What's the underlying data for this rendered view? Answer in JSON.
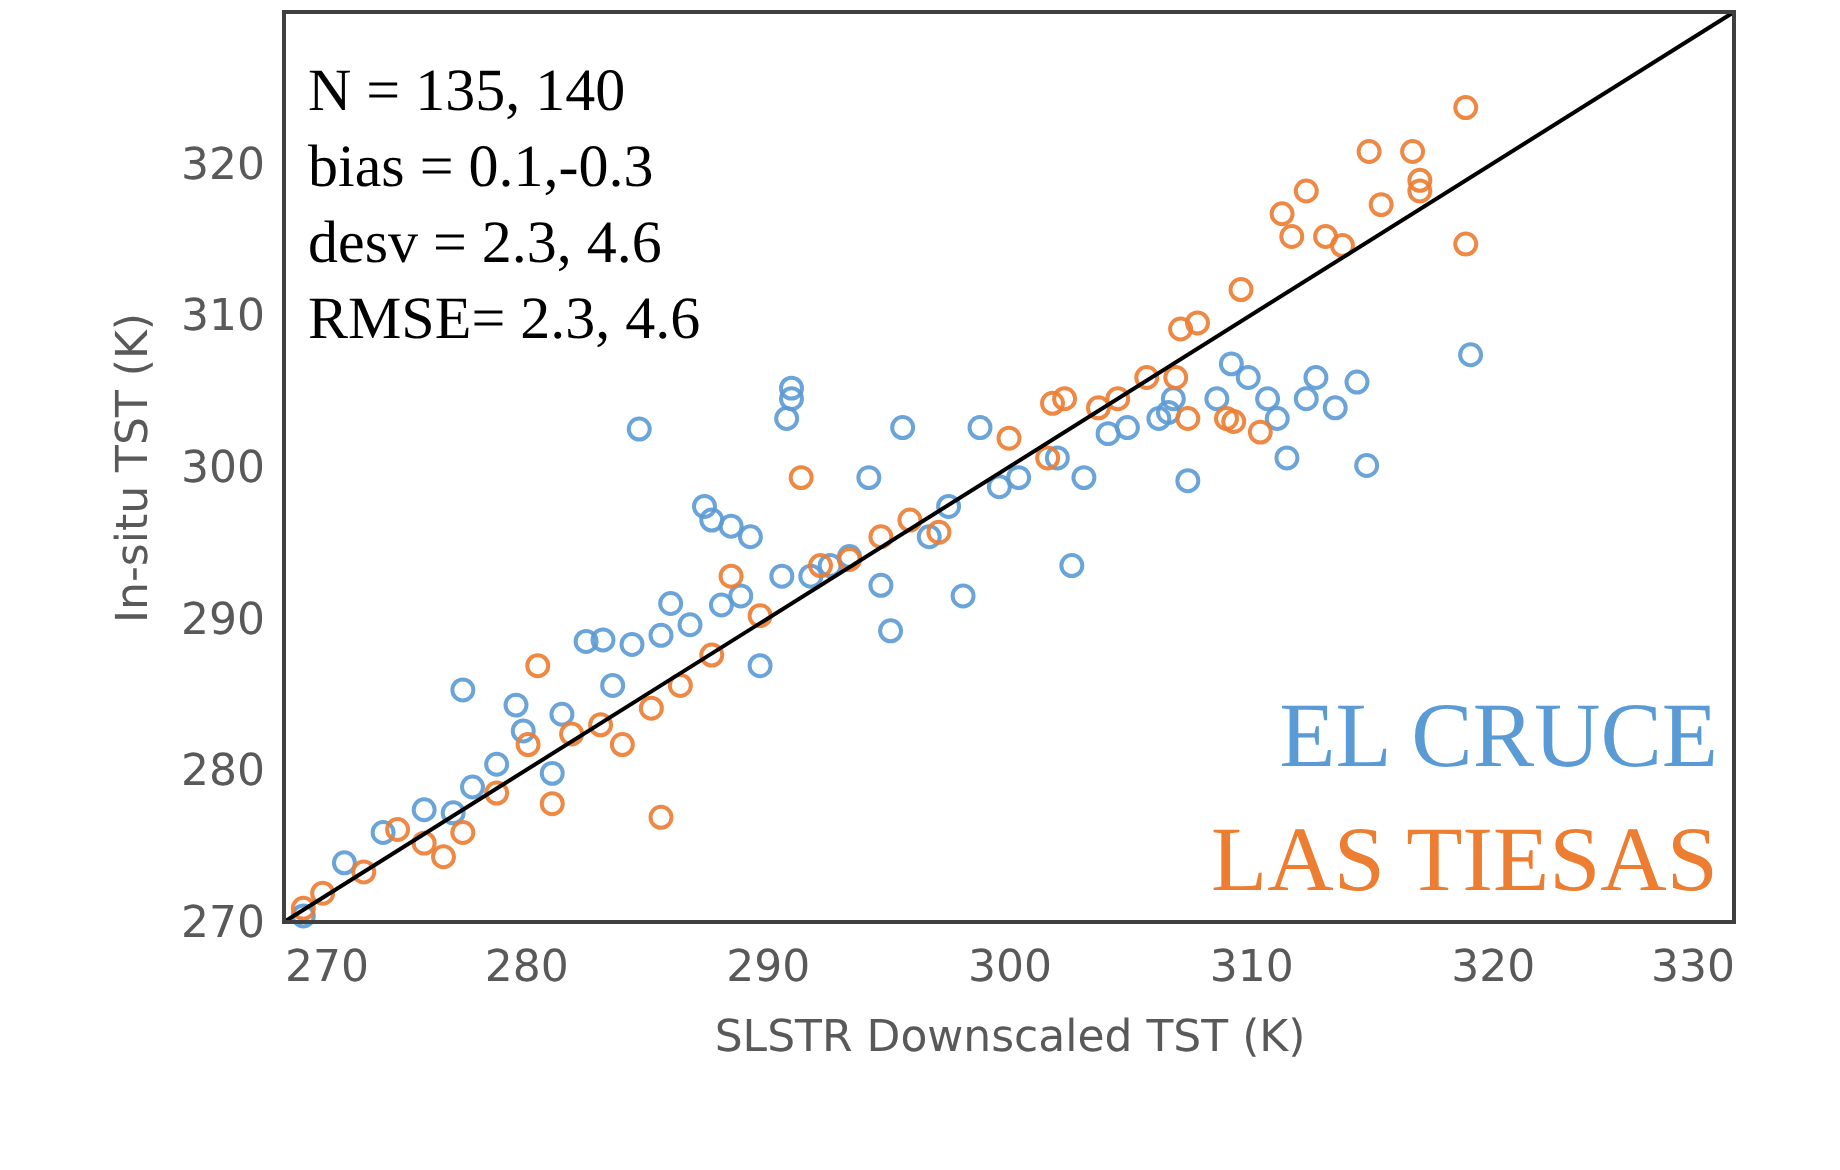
{
  "chart_data": {
    "type": "scatter",
    "xlabel": "SLSTR Downscaled TST (K)",
    "ylabel": "In-situ TST (K)",
    "xlim": [
      270,
      330
    ],
    "xticks": [
      270,
      280,
      290,
      300,
      310,
      320,
      330
    ],
    "ylim": [
      270,
      330
    ],
    "yticks": [
      270,
      280,
      290,
      300,
      310,
      320
    ],
    "grid": false,
    "marker": "circle",
    "legend": "bottom right",
    "annotations": [
      "N      = 135, 140",
      "bias   = 0.1,-0.3",
      "desv   = 2.3, 4.6",
      "RMSE= 2.3, 4.6"
    ],
    "series": [
      {
        "name": "EL CRUCE",
        "color": "#5b9bd5",
        "x": [
          270.8,
          272.5,
          274.1,
          275.8,
          277.4,
          277.0,
          279.6,
          279.9,
          281.1,
          281.5,
          282.5,
          283.2,
          284.7,
          286.0,
          287.4,
          287.7,
          288.5,
          289.3,
          289.7,
          290.6,
          290.8,
          291.0,
          291.0,
          291.8,
          293.4,
          294.2,
          295.1,
          295.6,
          296.7,
          297.5,
          298.1,
          298.8,
          299.6,
          300.4,
          302.0,
          302.6,
          303.1,
          304.1,
          306.2,
          306.8,
          307.4,
          308.6,
          309.2,
          309.9,
          310.7,
          311.1,
          311.5,
          312.3,
          312.7,
          313.5,
          314.4,
          314.8,
          319.1,
          277.8,
          278.8,
          283.6,
          284.4,
          285.6,
          286.8,
          288.1,
          288.9,
          292.6,
          294.7,
          306.6,
          304.9
        ],
        "values": [
          270.4,
          273.9,
          275.9,
          277.4,
          285.3,
          277.2,
          284.3,
          282.6,
          279.8,
          283.7,
          288.5,
          288.6,
          302.5,
          291.0,
          297.4,
          296.5,
          296.1,
          295.4,
          286.9,
          292.8,
          303.2,
          305.2,
          304.5,
          292.8,
          294.1,
          299.3,
          289.2,
          302.6,
          295.4,
          297.4,
          291.5,
          302.6,
          298.7,
          299.3,
          300.6,
          293.5,
          299.3,
          302.2,
          303.2,
          304.5,
          299.1,
          304.5,
          306.8,
          305.9,
          304.5,
          303.2,
          300.6,
          304.5,
          305.9,
          303.9,
          305.6,
          300.1,
          307.4,
          278.9,
          280.4,
          285.6,
          288.3,
          288.9,
          289.6,
          290.9,
          291.5,
          293.5,
          292.2,
          303.6,
          302.6
        ]
      },
      {
        "name": "LAS TIESAS",
        "color": "#ed7d31",
        "x": [
          270.8,
          271.6,
          273.3,
          274.7,
          275.8,
          276.6,
          277.4,
          278.8,
          280.1,
          280.5,
          281.1,
          281.9,
          283.1,
          284.0,
          285.2,
          285.6,
          286.4,
          287.7,
          288.5,
          289.7,
          291.4,
          292.2,
          293.4,
          294.7,
          295.9,
          297.1,
          300.0,
          301.6,
          302.3,
          303.7,
          304.5,
          305.7,
          306.9,
          307.4,
          309.0,
          309.6,
          307.1,
          307.8,
          311.3,
          311.7,
          312.3,
          313.1,
          313.8,
          314.9,
          315.4,
          316.7,
          317.0,
          317.0,
          318.9,
          318.9,
          309.3,
          310.4,
          301.8
        ],
        "values": [
          270.9,
          271.9,
          273.3,
          276.1,
          275.2,
          274.3,
          275.9,
          278.5,
          281.7,
          286.9,
          277.8,
          282.4,
          283.0,
          281.7,
          284.1,
          276.9,
          285.6,
          287.6,
          292.8,
          290.2,
          299.3,
          293.5,
          293.9,
          295.4,
          296.5,
          295.7,
          301.9,
          300.6,
          304.5,
          303.9,
          304.5,
          305.9,
          305.9,
          303.2,
          303.2,
          311.7,
          309.1,
          309.5,
          316.7,
          315.2,
          318.2,
          315.2,
          314.6,
          320.8,
          317.3,
          320.8,
          318.9,
          318.2,
          323.7,
          314.7,
          303.0,
          302.3,
          304.2
        ]
      },
      {
        "type": "line",
        "color": "#000000",
        "marker": "none",
        "line_style": "solid",
        "x": [
          270,
          330
        ],
        "values": [
          270,
          330
        ]
      }
    ]
  }
}
